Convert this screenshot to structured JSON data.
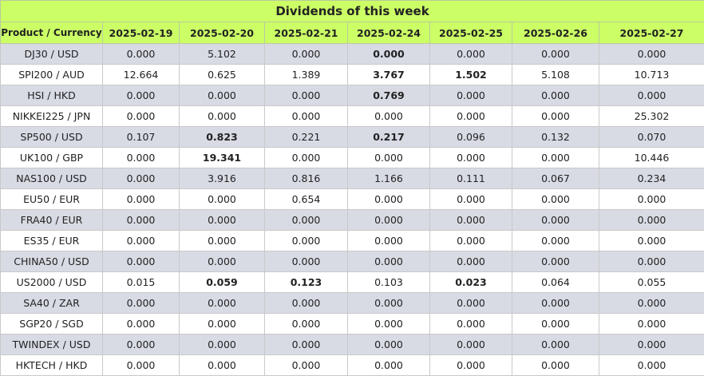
{
  "title": "Dividends of this week",
  "header": {
    "first": "Product / Currency",
    "dates": [
      "2025-02-19",
      "2025-02-20",
      "2025-02-21",
      "2025-02-24",
      "2025-02-25",
      "2025-02-26",
      "2025-02-27"
    ]
  },
  "rows": [
    {
      "product": "DJ30 / USD",
      "values": [
        "0.000",
        "5.102",
        "0.000",
        "0.000",
        "0.000",
        "0.000",
        "0.000"
      ],
      "bold": [
        3
      ]
    },
    {
      "product": "SPI200 / AUD",
      "values": [
        "12.664",
        "0.625",
        "1.389",
        "3.767",
        "1.502",
        "5.108",
        "10.713"
      ],
      "bold": [
        3,
        4
      ]
    },
    {
      "product": "HSI / HKD",
      "values": [
        "0.000",
        "0.000",
        "0.000",
        "0.769",
        "0.000",
        "0.000",
        "0.000"
      ],
      "bold": [
        3
      ]
    },
    {
      "product": "NIKKEI225 / JPN",
      "values": [
        "0.000",
        "0.000",
        "0.000",
        "0.000",
        "0.000",
        "0.000",
        "25.302"
      ],
      "bold": []
    },
    {
      "product": "SP500 / USD",
      "values": [
        "0.107",
        "0.823",
        "0.221",
        "0.217",
        "0.096",
        "0.132",
        "0.070"
      ],
      "bold": [
        1,
        3
      ]
    },
    {
      "product": "UK100 / GBP",
      "values": [
        "0.000",
        "19.341",
        "0.000",
        "0.000",
        "0.000",
        "0.000",
        "10.446"
      ],
      "bold": [
        1
      ]
    },
    {
      "product": "NAS100 / USD",
      "values": [
        "0.000",
        "3.916",
        "0.816",
        "1.166",
        "0.111",
        "0.067",
        "0.234"
      ],
      "bold": []
    },
    {
      "product": "EU50 / EUR",
      "values": [
        "0.000",
        "0.000",
        "0.654",
        "0.000",
        "0.000",
        "0.000",
        "0.000"
      ],
      "bold": []
    },
    {
      "product": "FRA40 / EUR",
      "values": [
        "0.000",
        "0.000",
        "0.000",
        "0.000",
        "0.000",
        "0.000",
        "0.000"
      ],
      "bold": []
    },
    {
      "product": "ES35 / EUR",
      "values": [
        "0.000",
        "0.000",
        "0.000",
        "0.000",
        "0.000",
        "0.000",
        "0.000"
      ],
      "bold": []
    },
    {
      "product": "CHINA50 / USD",
      "values": [
        "0.000",
        "0.000",
        "0.000",
        "0.000",
        "0.000",
        "0.000",
        "0.000"
      ],
      "bold": []
    },
    {
      "product": "US2000 / USD",
      "values": [
        "0.015",
        "0.059",
        "0.123",
        "0.103",
        "0.023",
        "0.064",
        "0.055"
      ],
      "bold": [
        1,
        2,
        4
      ]
    },
    {
      "product": "SA40 / ZAR",
      "values": [
        "0.000",
        "0.000",
        "0.000",
        "0.000",
        "0.000",
        "0.000",
        "0.000"
      ],
      "bold": []
    },
    {
      "product": "SGP20 / SGD",
      "values": [
        "0.000",
        "0.000",
        "0.000",
        "0.000",
        "0.000",
        "0.000",
        "0.000"
      ],
      "bold": []
    },
    {
      "product": "TWINDEX / USD",
      "values": [
        "0.000",
        "0.000",
        "0.000",
        "0.000",
        "0.000",
        "0.000",
        "0.000"
      ],
      "bold": []
    },
    {
      "product": "HKTECH / HKD",
      "values": [
        "0.000",
        "0.000",
        "0.000",
        "0.000",
        "0.000",
        "0.000",
        "0.000"
      ],
      "bold": []
    }
  ]
}
